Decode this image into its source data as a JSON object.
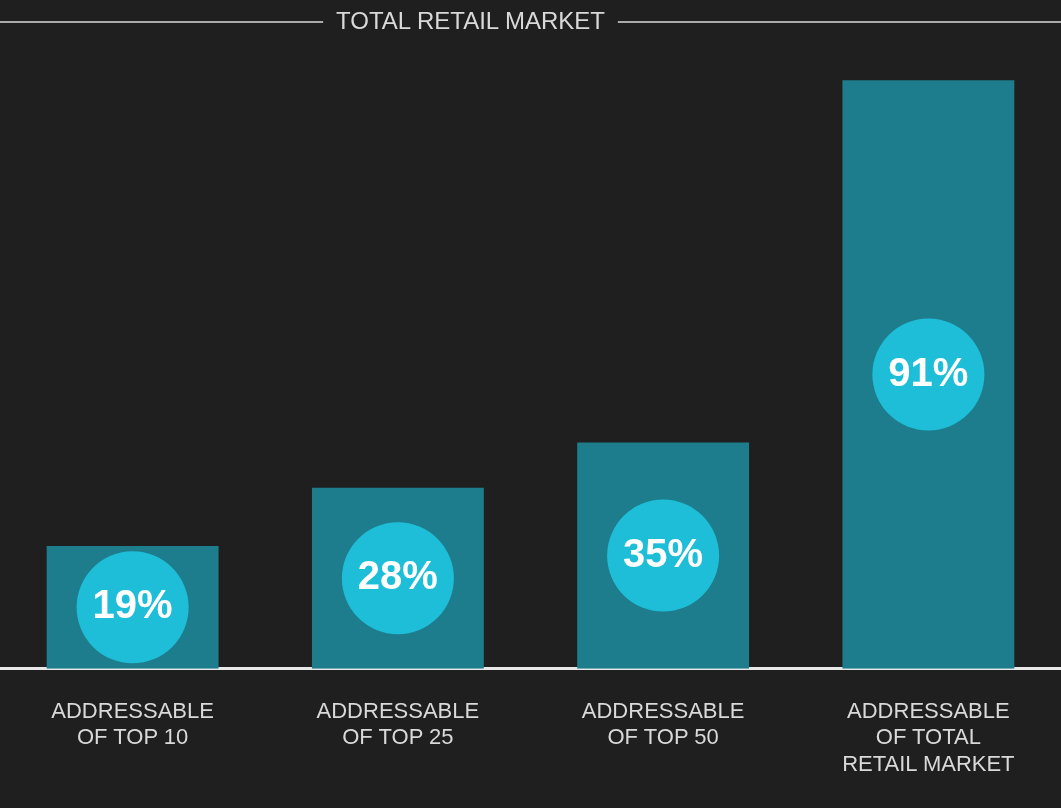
{
  "chart_data": {
    "type": "bar",
    "categories": [
      "ADDRESSABLE OF TOP 10",
      "ADDRESSABLE OF TOP 25",
      "ADDRESSABLE OF TOP 50",
      "ADDRESSABLE OF TOTAL RETAIL MARKET"
    ],
    "values": [
      19,
      28,
      35,
      91
    ],
    "color": "#1e7d8c",
    "value_labels": [
      "19%",
      "28%",
      "35%",
      "91%"
    ],
    "tick_labels": "x",
    "legend": false,
    "annotations": [
      "TOTAL RETAIL MARKET"
    ]
  }
}
